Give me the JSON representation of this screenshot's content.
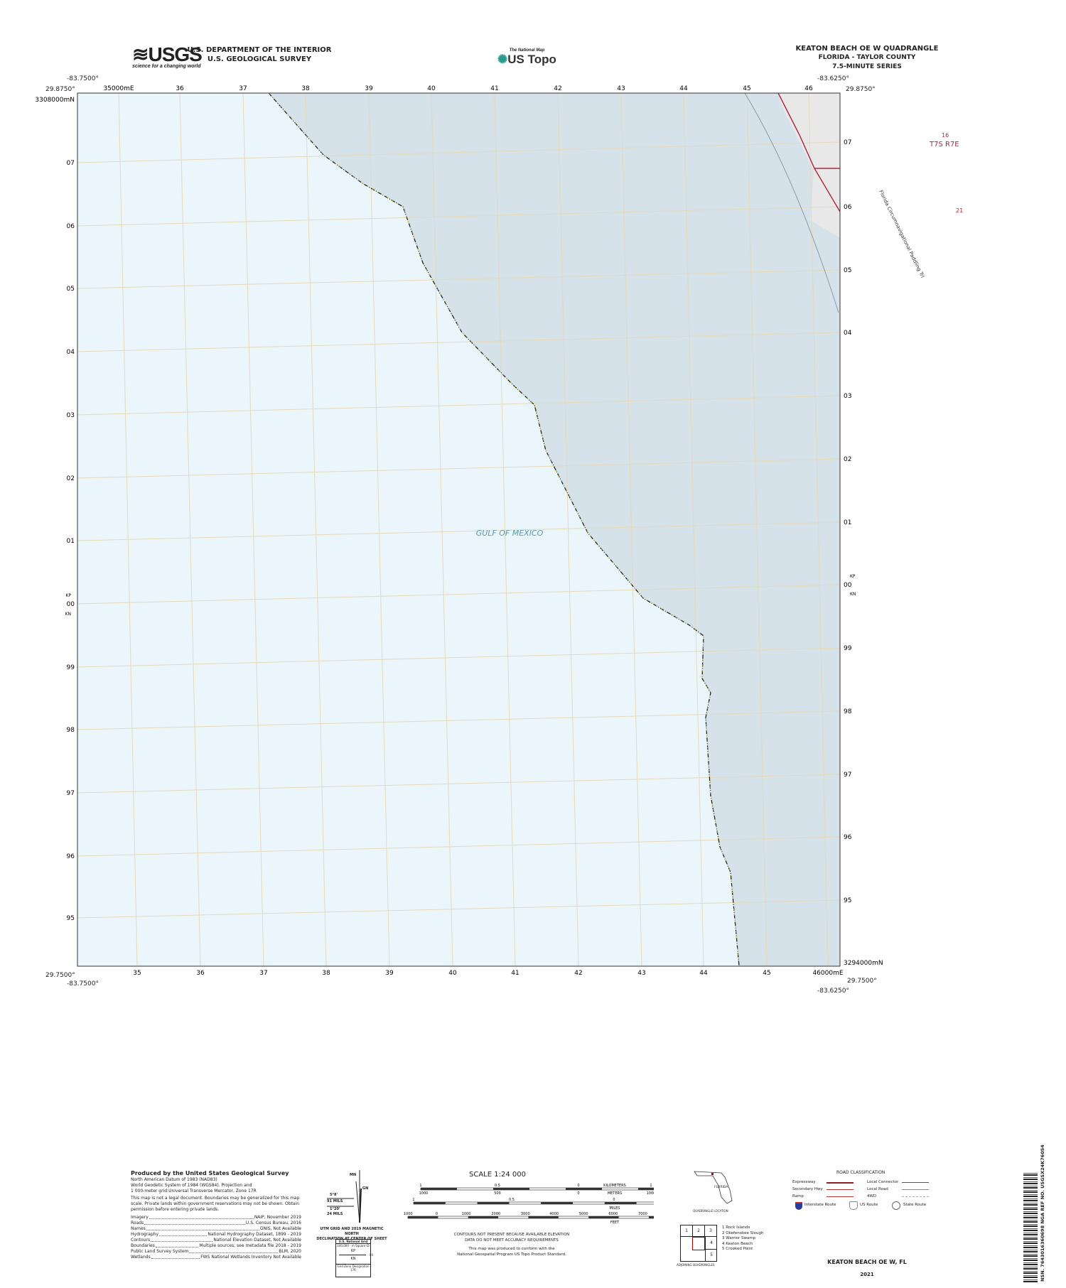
{
  "header": {
    "usgs_logo": "USGS",
    "usgs_tagline": "science for a changing world",
    "dept": "U.S. DEPARTMENT OF THE INTERIOR",
    "survey": "U.S. GEOLOGICAL SURVEY",
    "national_map": "The National Map",
    "us_topo": "US Topo",
    "quad_title": "KEATON BEACH OE W QUADRANGLE",
    "state_county": "FLORIDA - TAYLOR COUNTY",
    "series": "7.5-MINUTE SERIES"
  },
  "corners": {
    "nw_lon": "-83.7500°",
    "nw_lat": "29.8750°",
    "ne_lon": "-83.6250°",
    "ne_lat": "29.8750°",
    "sw_lon": "-83.7500°",
    "sw_lat": "29.7500°",
    "se_lon": "-83.6250°",
    "se_lat": "29.7500°"
  },
  "grid": {
    "top_eastings": [
      "35000mE",
      "36",
      "37",
      "38",
      "39",
      "40",
      "41",
      "42",
      "43",
      "44",
      "45",
      "46"
    ],
    "bottom_eastings": [
      "35",
      "36",
      "37",
      "38",
      "39",
      "40",
      "41",
      "42",
      "43",
      "44",
      "45",
      "46000mE"
    ],
    "left_northings": [
      "3308000mN",
      "07",
      "06",
      "05",
      "04",
      "03",
      "02",
      "01",
      "00",
      "99",
      "98",
      "97",
      "96",
      "95"
    ],
    "right_northings": [
      "07",
      "06",
      "05",
      "04",
      "03",
      "02",
      "01",
      "00",
      "99",
      "98",
      "97",
      "96",
      "95",
      "3294000mN"
    ],
    "gzd_left": [
      "KP",
      "KN"
    ],
    "gzd_right": [
      "KP",
      "KN"
    ]
  },
  "map": {
    "water_label": "GULF OF MEXICO",
    "township": "T7S R7E",
    "section_a": "16",
    "section_b": "21",
    "trail_label": "Florida Circumnavigational Paddling Trl",
    "colors": {
      "water": "#eaf6fc",
      "shallow": "#d5e2e9",
      "boundary": "#a8283c",
      "grid": "#e6d9b8",
      "land": "#e8e8e8"
    }
  },
  "credits": {
    "title": "Produced by the United States Geological Survey",
    "lines": [
      "North American Datum of 1983 (NAD83)",
      "World Geodetic System of 1984 (WGS84). Projection and",
      "1 000-meter grid:Universal Transverse Mercator, Zone 17R"
    ],
    "disclaimer": "This map is not a legal document. Boundaries may be generalized for this map scale. Private lands within government reservations may not be shown. Obtain permission before entering private lands.",
    "sources": [
      {
        "k": "Imagery",
        "v": "NAIP, November 2019"
      },
      {
        "k": "Roads",
        "v": "U.S. Census Bureau, 2016"
      },
      {
        "k": "Names",
        "v": "GNIS, Not Available"
      },
      {
        "k": "Hydrography",
        "v": "National Hydrography Dataset, 1899 - 2019"
      },
      {
        "k": "Contours",
        "v": "National Elevation Dataset, Not Available"
      },
      {
        "k": "Boundaries",
        "v": "Multiple sources; see metadata file 2018 - 2019"
      },
      {
        "k": "Public Land Survey System",
        "v": "BLM, 2020"
      },
      {
        "k": "Wetlands",
        "v": "FWS National Wetlands Inventory Not Available"
      }
    ]
  },
  "declination": {
    "mn": "MN",
    "gn": "GN",
    "a1": "5°8'",
    "a1b": "91 MILS",
    "a2": "1°20'",
    "a2b": "24 MILS",
    "caption1": "UTM GRID AND 2019 MAGNETIC NORTH",
    "caption2": "DECLINATION AT CENTER OF SHEET"
  },
  "usng": {
    "title": "U.S. National Grid",
    "sub": "100,000 - m Square ID",
    "kp": "KP",
    "kn": "KN",
    "num": "00",
    "gzd_label": "Grid Zone Designation",
    "gzd": "17R"
  },
  "scale": {
    "title": "SCALE 1:24 000",
    "km_ticks": [
      "1",
      "0.5",
      "0",
      "1",
      "2"
    ],
    "km_label": "KILOMETERS",
    "m_ticks": [
      "1000",
      "500",
      "0",
      "1000",
      "2000"
    ],
    "m_label": "METERS",
    "mi_ticks": [
      "1",
      "0.5",
      "0",
      "1"
    ],
    "mi_label": "MILES",
    "ft_ticks": [
      "1000",
      "0",
      "1000",
      "2000",
      "3000",
      "4000",
      "5000",
      "6000",
      "7000",
      "8000",
      "9000",
      "10000"
    ],
    "ft_label": "FEET"
  },
  "notes": {
    "contours1": "CONTOURS NOT PRESENT BECAUSE AVAILABLE ELEVATION",
    "contours2": "DATA DO NOT MEET ACCURACY REQUIREMENTS",
    "std1": "This map was produced to conform with the",
    "std2": "National Geospatial Program US Topo Product Standard."
  },
  "location": {
    "state": "FLORIDA",
    "caption": "QUADRANGLE LOCATION"
  },
  "adjoining": {
    "caption": "ADJOINING QUADRANGLES",
    "cells": [
      "1",
      "2",
      "3",
      "4",
      "5"
    ],
    "names": [
      "1 Rock Islands",
      "2 Okefenokee Slough",
      "3 Warrior Swamp",
      "4 Keaton Beach",
      "5 Crooked Point"
    ]
  },
  "roads": {
    "title": "ROAD CLASSIFICATION",
    "expressway": "Expressway",
    "secondary": "Secondary Hwy",
    "ramp": "Ramp",
    "local_connector": "Local Connector",
    "local_road": "Local Road",
    "fourwd": "4WD",
    "interstate": "Interstate Route",
    "us": "US Route",
    "state": "State Route"
  },
  "footer": {
    "name": "KEATON BEACH OE W,  FL",
    "year": "2021",
    "barcode_text": "NSN. 7643016360698  NGA REF NO. USGSX24K76054"
  }
}
